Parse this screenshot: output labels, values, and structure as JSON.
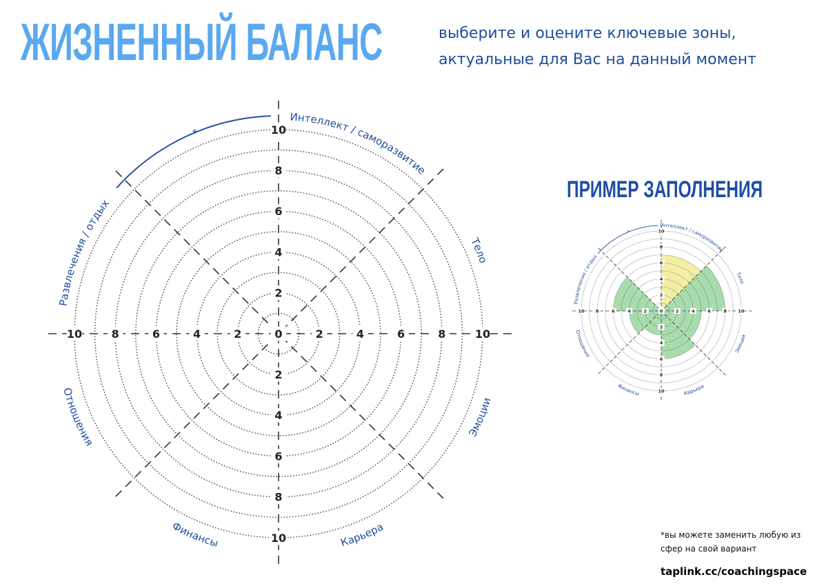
{
  "header": {
    "title": "ЖИЗНЕННЫЙ БАЛАНС",
    "subtitle_line1": "выберите и оцените ключевые зоны,",
    "subtitle_line2": "актуальные для Вас на данный момент"
  },
  "wheel": {
    "sectors": [
      "Интеллект / саморазвитие",
      "Тело",
      "Эмоции",
      "Карьера",
      "Финансы",
      "Отношения",
      "Развлечения / отдых",
      "*"
    ],
    "tick_labels": [
      "0",
      "2",
      "4",
      "6",
      "8",
      "10"
    ]
  },
  "example": {
    "title": "ПРИМЕР ЗАПОЛНЕНИЯ",
    "sectors": [
      "Интеллект / саморазвитие",
      "Тело",
      "Эмоции",
      "Карьера",
      "Финансы",
      "Отношения",
      "Развлечения / отдых",
      "*"
    ]
  },
  "footer": {
    "note_line1": "*вы можете заменить любую из",
    "note_line2": "сфер на свой вариант",
    "link": "taplink.cc/coachingspace"
  },
  "colors": {
    "title": "#5aa8f0",
    "text": "#1f4e9c",
    "fill_yellow": "#f3ec9a",
    "fill_green": "#9fd8a4"
  }
}
